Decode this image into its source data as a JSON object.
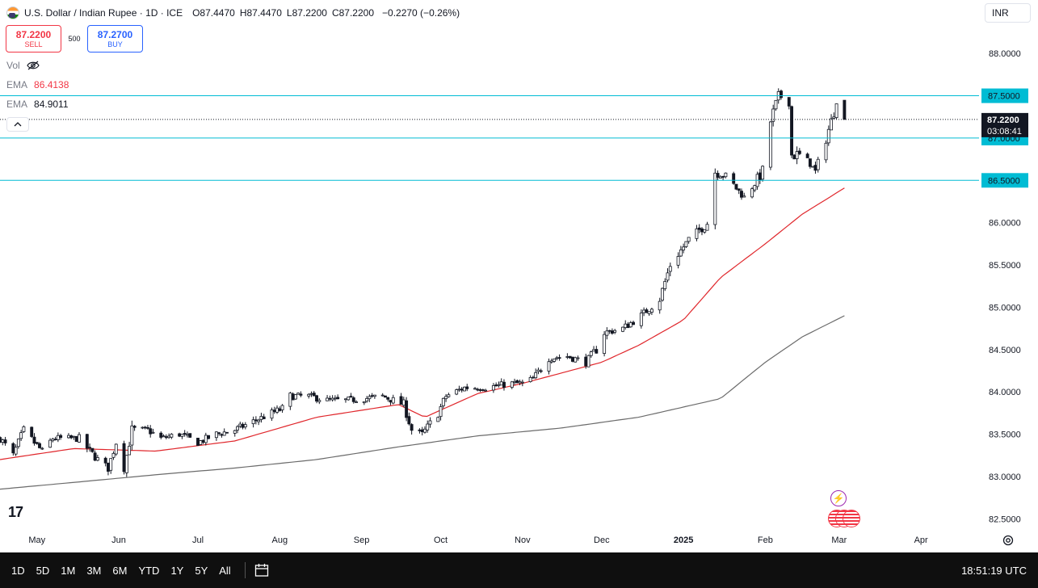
{
  "legend": {
    "title": "U.S. Dollar / Indian Rupee · 1D · ICE",
    "open_label": "O",
    "open": "87.4470",
    "high_label": "H",
    "high": "87.4470",
    "low_label": "L",
    "low": "87.2200",
    "close_label": "C",
    "close": "87.2200",
    "change": "−0.2270 (−0.26%)"
  },
  "trade": {
    "sell_price": "87.2200",
    "sell_label": "SELL",
    "spread": "500",
    "buy_price": "87.2700",
    "buy_label": "BUY"
  },
  "indicators": {
    "vol_label": "Vol",
    "ema1_label": "EMA",
    "ema1_value": "86.4138",
    "ema2_label": "EMA",
    "ema2_value": "84.9011"
  },
  "currency": "INR",
  "logo_text": "17",
  "time_ranges": [
    "1D",
    "5D",
    "1M",
    "3M",
    "6M",
    "YTD",
    "1Y",
    "5Y",
    "All"
  ],
  "utc_time": "18:51:19 UTC",
  "colors": {
    "up": "#131722",
    "down": "#131722",
    "ema_fast": "#e0262b",
    "ema_slow": "#6b6b6b",
    "hline": "#00bcd4",
    "price_badge": "#131722",
    "hline_badge": "#00bcd4"
  },
  "chart_data": {
    "type": "candlestick",
    "y_ticks": [
      "88.0000",
      "87.5000",
      "87.0000",
      "86.5000",
      "86.0000",
      "85.5000",
      "85.0000",
      "84.5000",
      "84.0000",
      "83.5000",
      "83.0000",
      "82.5000"
    ],
    "x_ticks": [
      "May",
      "Jun",
      "Jul",
      "Aug",
      "Sep",
      "Oct",
      "Nov",
      "Dec",
      "2025",
      "Feb",
      "Mar",
      "Apr"
    ],
    "horizontal_lines": [
      {
        "price": 87.5,
        "label": "87.5000"
      },
      {
        "price": 87.0,
        "label": "87.0000"
      },
      {
        "price": 86.5,
        "label": "86.5000"
      }
    ],
    "last_price": {
      "price": 87.22,
      "label": "87.2200",
      "countdown": "03:08:41"
    },
    "series": [
      {
        "name": "USD/INR",
        "close_anchors": [
          {
            "d": "2024-04-17",
            "v": 83.45
          },
          {
            "d": "2024-04-22",
            "v": 83.25
          },
          {
            "d": "2024-04-26",
            "v": 83.55
          },
          {
            "d": "2024-04-30",
            "v": 83.4
          },
          {
            "d": "2024-05-03",
            "v": 83.3
          },
          {
            "d": "2024-05-07",
            "v": 83.45
          },
          {
            "d": "2024-05-13",
            "v": 83.45
          },
          {
            "d": "2024-05-17",
            "v": 83.45
          },
          {
            "d": "2024-05-21",
            "v": 83.3
          },
          {
            "d": "2024-05-24",
            "v": 83.2
          },
          {
            "d": "2024-05-28",
            "v": 83.1
          },
          {
            "d": "2024-05-31",
            "v": 83.4
          },
          {
            "d": "2024-06-03",
            "v": 83.1
          },
          {
            "d": "2024-06-06",
            "v": 83.55
          },
          {
            "d": "2024-06-12",
            "v": 83.55
          },
          {
            "d": "2024-06-17",
            "v": 83.45
          },
          {
            "d": "2024-06-24",
            "v": 83.5
          },
          {
            "d": "2024-07-01",
            "v": 83.4
          },
          {
            "d": "2024-07-08",
            "v": 83.5
          },
          {
            "d": "2024-07-15",
            "v": 83.55
          },
          {
            "d": "2024-07-22",
            "v": 83.65
          },
          {
            "d": "2024-07-29",
            "v": 83.75
          },
          {
            "d": "2024-08-02",
            "v": 83.8
          },
          {
            "d": "2024-08-05",
            "v": 83.95
          },
          {
            "d": "2024-08-12",
            "v": 83.95
          },
          {
            "d": "2024-08-19",
            "v": 83.9
          },
          {
            "d": "2024-08-26",
            "v": 83.9
          },
          {
            "d": "2024-09-02",
            "v": 83.92
          },
          {
            "d": "2024-09-09",
            "v": 83.95
          },
          {
            "d": "2024-09-13",
            "v": 83.9
          },
          {
            "d": "2024-09-17",
            "v": 83.85
          },
          {
            "d": "2024-09-20",
            "v": 83.55
          },
          {
            "d": "2024-09-24",
            "v": 83.5
          },
          {
            "d": "2024-09-30",
            "v": 83.75
          },
          {
            "d": "2024-10-03",
            "v": 83.95
          },
          {
            "d": "2024-10-10",
            "v": 84.05
          },
          {
            "d": "2024-10-18",
            "v": 84.05
          },
          {
            "d": "2024-10-28",
            "v": 84.1
          },
          {
            "d": "2024-11-01",
            "v": 84.1
          },
          {
            "d": "2024-11-05",
            "v": 84.15
          },
          {
            "d": "2024-11-11",
            "v": 84.4
          },
          {
            "d": "2024-11-18",
            "v": 84.42
          },
          {
            "d": "2024-11-25",
            "v": 84.35
          },
          {
            "d": "2024-11-29",
            "v": 84.5
          },
          {
            "d": "2024-12-02",
            "v": 84.7
          },
          {
            "d": "2024-12-09",
            "v": 84.75
          },
          {
            "d": "2024-12-16",
            "v": 84.9
          },
          {
            "d": "2024-12-23",
            "v": 85.1
          },
          {
            "d": "2024-12-27",
            "v": 85.5
          },
          {
            "d": "2025-01-03",
            "v": 85.8
          },
          {
            "d": "2025-01-10",
            "v": 86.0
          },
          {
            "d": "2025-01-13",
            "v": 86.6
          },
          {
            "d": "2025-01-17",
            "v": 86.55
          },
          {
            "d": "2025-01-24",
            "v": 86.3
          },
          {
            "d": "2025-01-31",
            "v": 86.6
          },
          {
            "d": "2025-02-03",
            "v": 87.2
          },
          {
            "d": "2025-02-06",
            "v": 87.5
          },
          {
            "d": "2025-02-10",
            "v": 87.45
          },
          {
            "d": "2025-02-11",
            "v": 86.8
          },
          {
            "d": "2025-02-14",
            "v": 86.8
          },
          {
            "d": "2025-02-18",
            "v": 86.7
          },
          {
            "d": "2025-02-20",
            "v": 86.6
          },
          {
            "d": "2025-02-24",
            "v": 87.0
          },
          {
            "d": "2025-02-27",
            "v": 87.3
          },
          {
            "d": "2025-02-28",
            "v": 87.45
          },
          {
            "d": "2025-03-03",
            "v": 87.22
          }
        ]
      },
      {
        "name": "EMA",
        "value_label": "86.4138",
        "anchors": [
          {
            "d": "2024-04-17",
            "v": 83.2
          },
          {
            "d": "2024-05-15",
            "v": 83.33
          },
          {
            "d": "2024-06-15",
            "v": 83.3
          },
          {
            "d": "2024-07-15",
            "v": 83.42
          },
          {
            "d": "2024-08-15",
            "v": 83.7
          },
          {
            "d": "2024-09-15",
            "v": 83.85
          },
          {
            "d": "2024-09-25",
            "v": 83.7
          },
          {
            "d": "2024-10-15",
            "v": 83.98
          },
          {
            "d": "2024-11-01",
            "v": 84.1
          },
          {
            "d": "2024-12-01",
            "v": 84.35
          },
          {
            "d": "2024-12-15",
            "v": 84.55
          },
          {
            "d": "2025-01-01",
            "v": 84.85
          },
          {
            "d": "2025-01-15",
            "v": 85.35
          },
          {
            "d": "2025-02-01",
            "v": 85.75
          },
          {
            "d": "2025-02-15",
            "v": 86.1
          },
          {
            "d": "2025-03-03",
            "v": 86.41
          }
        ]
      },
      {
        "name": "EMA",
        "value_label": "84.9011",
        "anchors": [
          {
            "d": "2024-04-17",
            "v": 82.85
          },
          {
            "d": "2024-05-15",
            "v": 82.93
          },
          {
            "d": "2024-06-15",
            "v": 83.02
          },
          {
            "d": "2024-07-15",
            "v": 83.1
          },
          {
            "d": "2024-08-15",
            "v": 83.2
          },
          {
            "d": "2024-09-15",
            "v": 83.35
          },
          {
            "d": "2024-10-15",
            "v": 83.48
          },
          {
            "d": "2024-11-15",
            "v": 83.57
          },
          {
            "d": "2024-12-15",
            "v": 83.7
          },
          {
            "d": "2025-01-15",
            "v": 83.92
          },
          {
            "d": "2025-02-01",
            "v": 84.35
          },
          {
            "d": "2025-02-15",
            "v": 84.65
          },
          {
            "d": "2025-03-03",
            "v": 84.9
          }
        ]
      }
    ],
    "x_range": [
      "2024-04-17",
      "2025-04-23"
    ],
    "ylim": [
      82.35,
      88.25
    ]
  }
}
